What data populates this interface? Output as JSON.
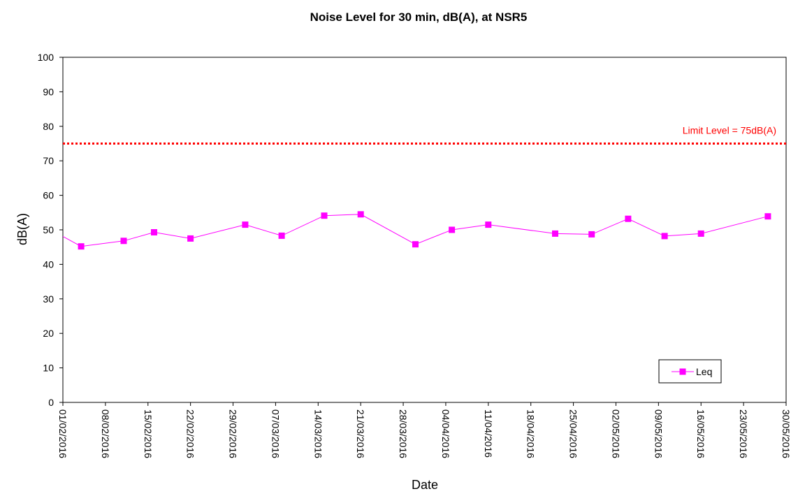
{
  "chart_data": {
    "type": "line",
    "title": "Noise Level for 30 min, dB(A), at NSR5",
    "xlabel": "Date",
    "ylabel": "dB(A)",
    "ylim": [
      0,
      100
    ],
    "yticks": [
      0,
      10,
      20,
      30,
      40,
      50,
      60,
      70,
      80,
      90,
      100
    ],
    "xlim": [
      "01/02/2016",
      "30/05/2016"
    ],
    "xticks": [
      "01/02/2016",
      "08/02/2016",
      "15/02/2016",
      "22/02/2016",
      "29/02/2016",
      "07/03/2016",
      "14/03/2016",
      "21/03/2016",
      "28/03/2016",
      "04/04/2016",
      "11/04/2016",
      "18/04/2016",
      "25/04/2016",
      "02/05/2016",
      "09/05/2016",
      "16/05/2016",
      "23/05/2016",
      "30/05/2016"
    ],
    "grid": false,
    "legend": {
      "position": "bottom-right",
      "entries": [
        "Leq"
      ]
    },
    "series": [
      {
        "name": "Leq",
        "color": "#ff00ff",
        "marker": "square",
        "points": [
          {
            "x": "29/01/2016",
            "y": 51.0
          },
          {
            "x": "04/02/2016",
            "y": 45.2
          },
          {
            "x": "11/02/2016",
            "y": 46.8
          },
          {
            "x": "16/02/2016",
            "y": 49.3
          },
          {
            "x": "22/02/2016",
            "y": 47.5
          },
          {
            "x": "02/03/2016",
            "y": 51.5
          },
          {
            "x": "08/03/2016",
            "y": 48.3
          },
          {
            "x": "15/03/2016",
            "y": 54.1
          },
          {
            "x": "21/03/2016",
            "y": 54.5
          },
          {
            "x": "30/03/2016",
            "y": 45.8
          },
          {
            "x": "05/04/2016",
            "y": 50.0
          },
          {
            "x": "11/04/2016",
            "y": 51.5
          },
          {
            "x": "22/04/2016",
            "y": 48.9
          },
          {
            "x": "28/04/2016",
            "y": 48.7
          },
          {
            "x": "04/05/2016",
            "y": 53.2
          },
          {
            "x": "10/05/2016",
            "y": 48.2
          },
          {
            "x": "16/05/2016",
            "y": 48.9
          },
          {
            "x": "27/05/2016",
            "y": 53.9
          }
        ]
      }
    ],
    "reference_lines": [
      {
        "value": 75,
        "label": "Limit Level = 75dB(A)",
        "color": "#ff0000",
        "style": "dotted"
      }
    ]
  }
}
